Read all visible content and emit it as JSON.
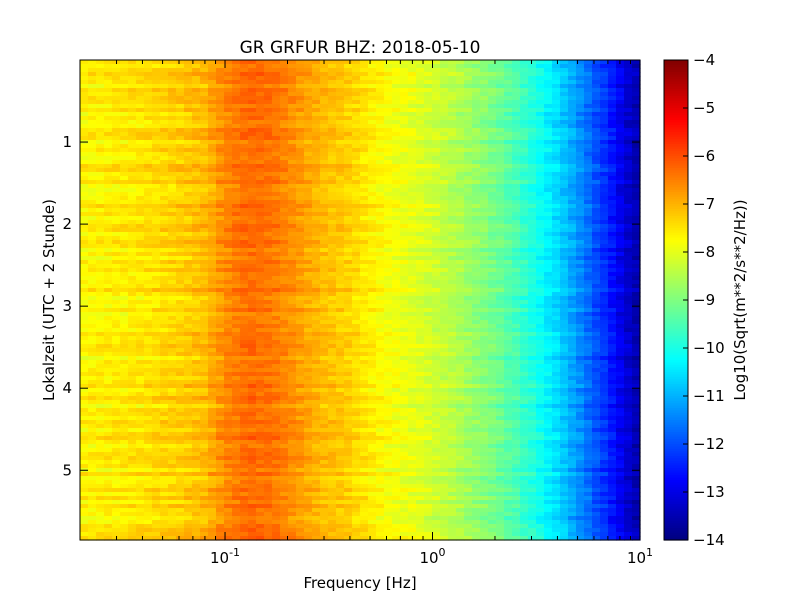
{
  "chart_data": {
    "type": "heatmap",
    "title": "GR GRFUR BHZ: 2018-05-10",
    "xlabel": "Frequency [Hz]",
    "ylabel": "Lokalzeit (UTC + 2 Stunde)",
    "x_scale": "log",
    "x_range": [
      0.02,
      10
    ],
    "x_ticks": [
      {
        "value": 0.1,
        "base": "10",
        "exp": "-1"
      },
      {
        "value": 1,
        "base": "10",
        "exp": "0"
      },
      {
        "value": 10,
        "base": "10",
        "exp": "1"
      }
    ],
    "y_range": [
      0,
      5.85
    ],
    "y_inverted": true,
    "y_ticks": [
      1,
      2,
      3,
      4,
      5
    ],
    "colorbar": {
      "label": "Log10(Sqrt(m**2/s**2/Hz))",
      "range": [
        -14,
        -4
      ],
      "ticks": [
        -4,
        -5,
        -6,
        -7,
        -8,
        -9,
        -10,
        -11,
        -12,
        -13,
        -14
      ],
      "colormap": "jet"
    },
    "spectrum_profile": {
      "frequency_hz": [
        0.02,
        0.04,
        0.06,
        0.08,
        0.1,
        0.13,
        0.17,
        0.2,
        0.25,
        0.3,
        0.4,
        0.5,
        0.6,
        0.8,
        1.0,
        1.2,
        1.5,
        2.0,
        2.5,
        3.0,
        4.0,
        5.0,
        6.0,
        7.0,
        8.0,
        9.0,
        10.0
      ],
      "value_log10": [
        -7.7,
        -7.5,
        -7.3,
        -7.1,
        -6.6,
        -6.3,
        -6.4,
        -6.6,
        -6.9,
        -7.1,
        -7.3,
        -7.6,
        -7.8,
        -8.0,
        -8.2,
        -8.4,
        -8.7,
        -9.1,
        -9.5,
        -9.9,
        -10.6,
        -11.3,
        -11.9,
        -12.4,
        -12.9,
        -13.3,
        -13.6
      ]
    }
  }
}
